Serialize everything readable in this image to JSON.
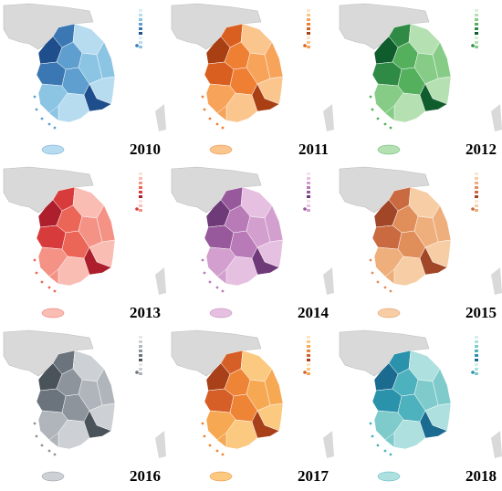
{
  "maps": [
    {
      "year": "2010",
      "palette": [
        "#dbeef8",
        "#b7dcef",
        "#8cc4e3",
        "#5f9fcf",
        "#3a77b3",
        "#1f4e8c"
      ]
    },
    {
      "year": "2011",
      "palette": [
        "#fde3c8",
        "#fbc58e",
        "#f7a35a",
        "#ef7f33",
        "#d85f1f",
        "#a94013"
      ]
    },
    {
      "year": "2012",
      "palette": [
        "#d9f0d8",
        "#b4e0b2",
        "#86cc87",
        "#55b05e",
        "#2e8a44",
        "#0f5c2c"
      ]
    },
    {
      "year": "2013",
      "palette": [
        "#fde0dc",
        "#f9bdb4",
        "#f49286",
        "#ec6658",
        "#d83b3b",
        "#ad1f2c"
      ]
    },
    {
      "year": "2014",
      "palette": [
        "#f4dff0",
        "#e6c0e0",
        "#d29fcf",
        "#b97ab8",
        "#98589c",
        "#6e3a78"
      ]
    },
    {
      "year": "2015",
      "palette": [
        "#fbe6cf",
        "#f6cda5",
        "#eeaf7d",
        "#e08f5b",
        "#c96a40",
        "#a24628"
      ]
    },
    {
      "year": "2016",
      "palette": [
        "#e6e8ea",
        "#cdd1d5",
        "#afb5bb",
        "#8d949c",
        "#6b737c",
        "#4a525a"
      ]
    },
    {
      "year": "2017",
      "palette": [
        "#fde6bd",
        "#fbc97f",
        "#f6a852",
        "#ee8436",
        "#d65f27",
        "#a8401a"
      ]
    },
    {
      "year": "2018",
      "palette": [
        "#d6efee",
        "#ade0de",
        "#7fcbcc",
        "#4db2bd",
        "#2a92ab",
        "#1b6a90"
      ]
    }
  ]
}
